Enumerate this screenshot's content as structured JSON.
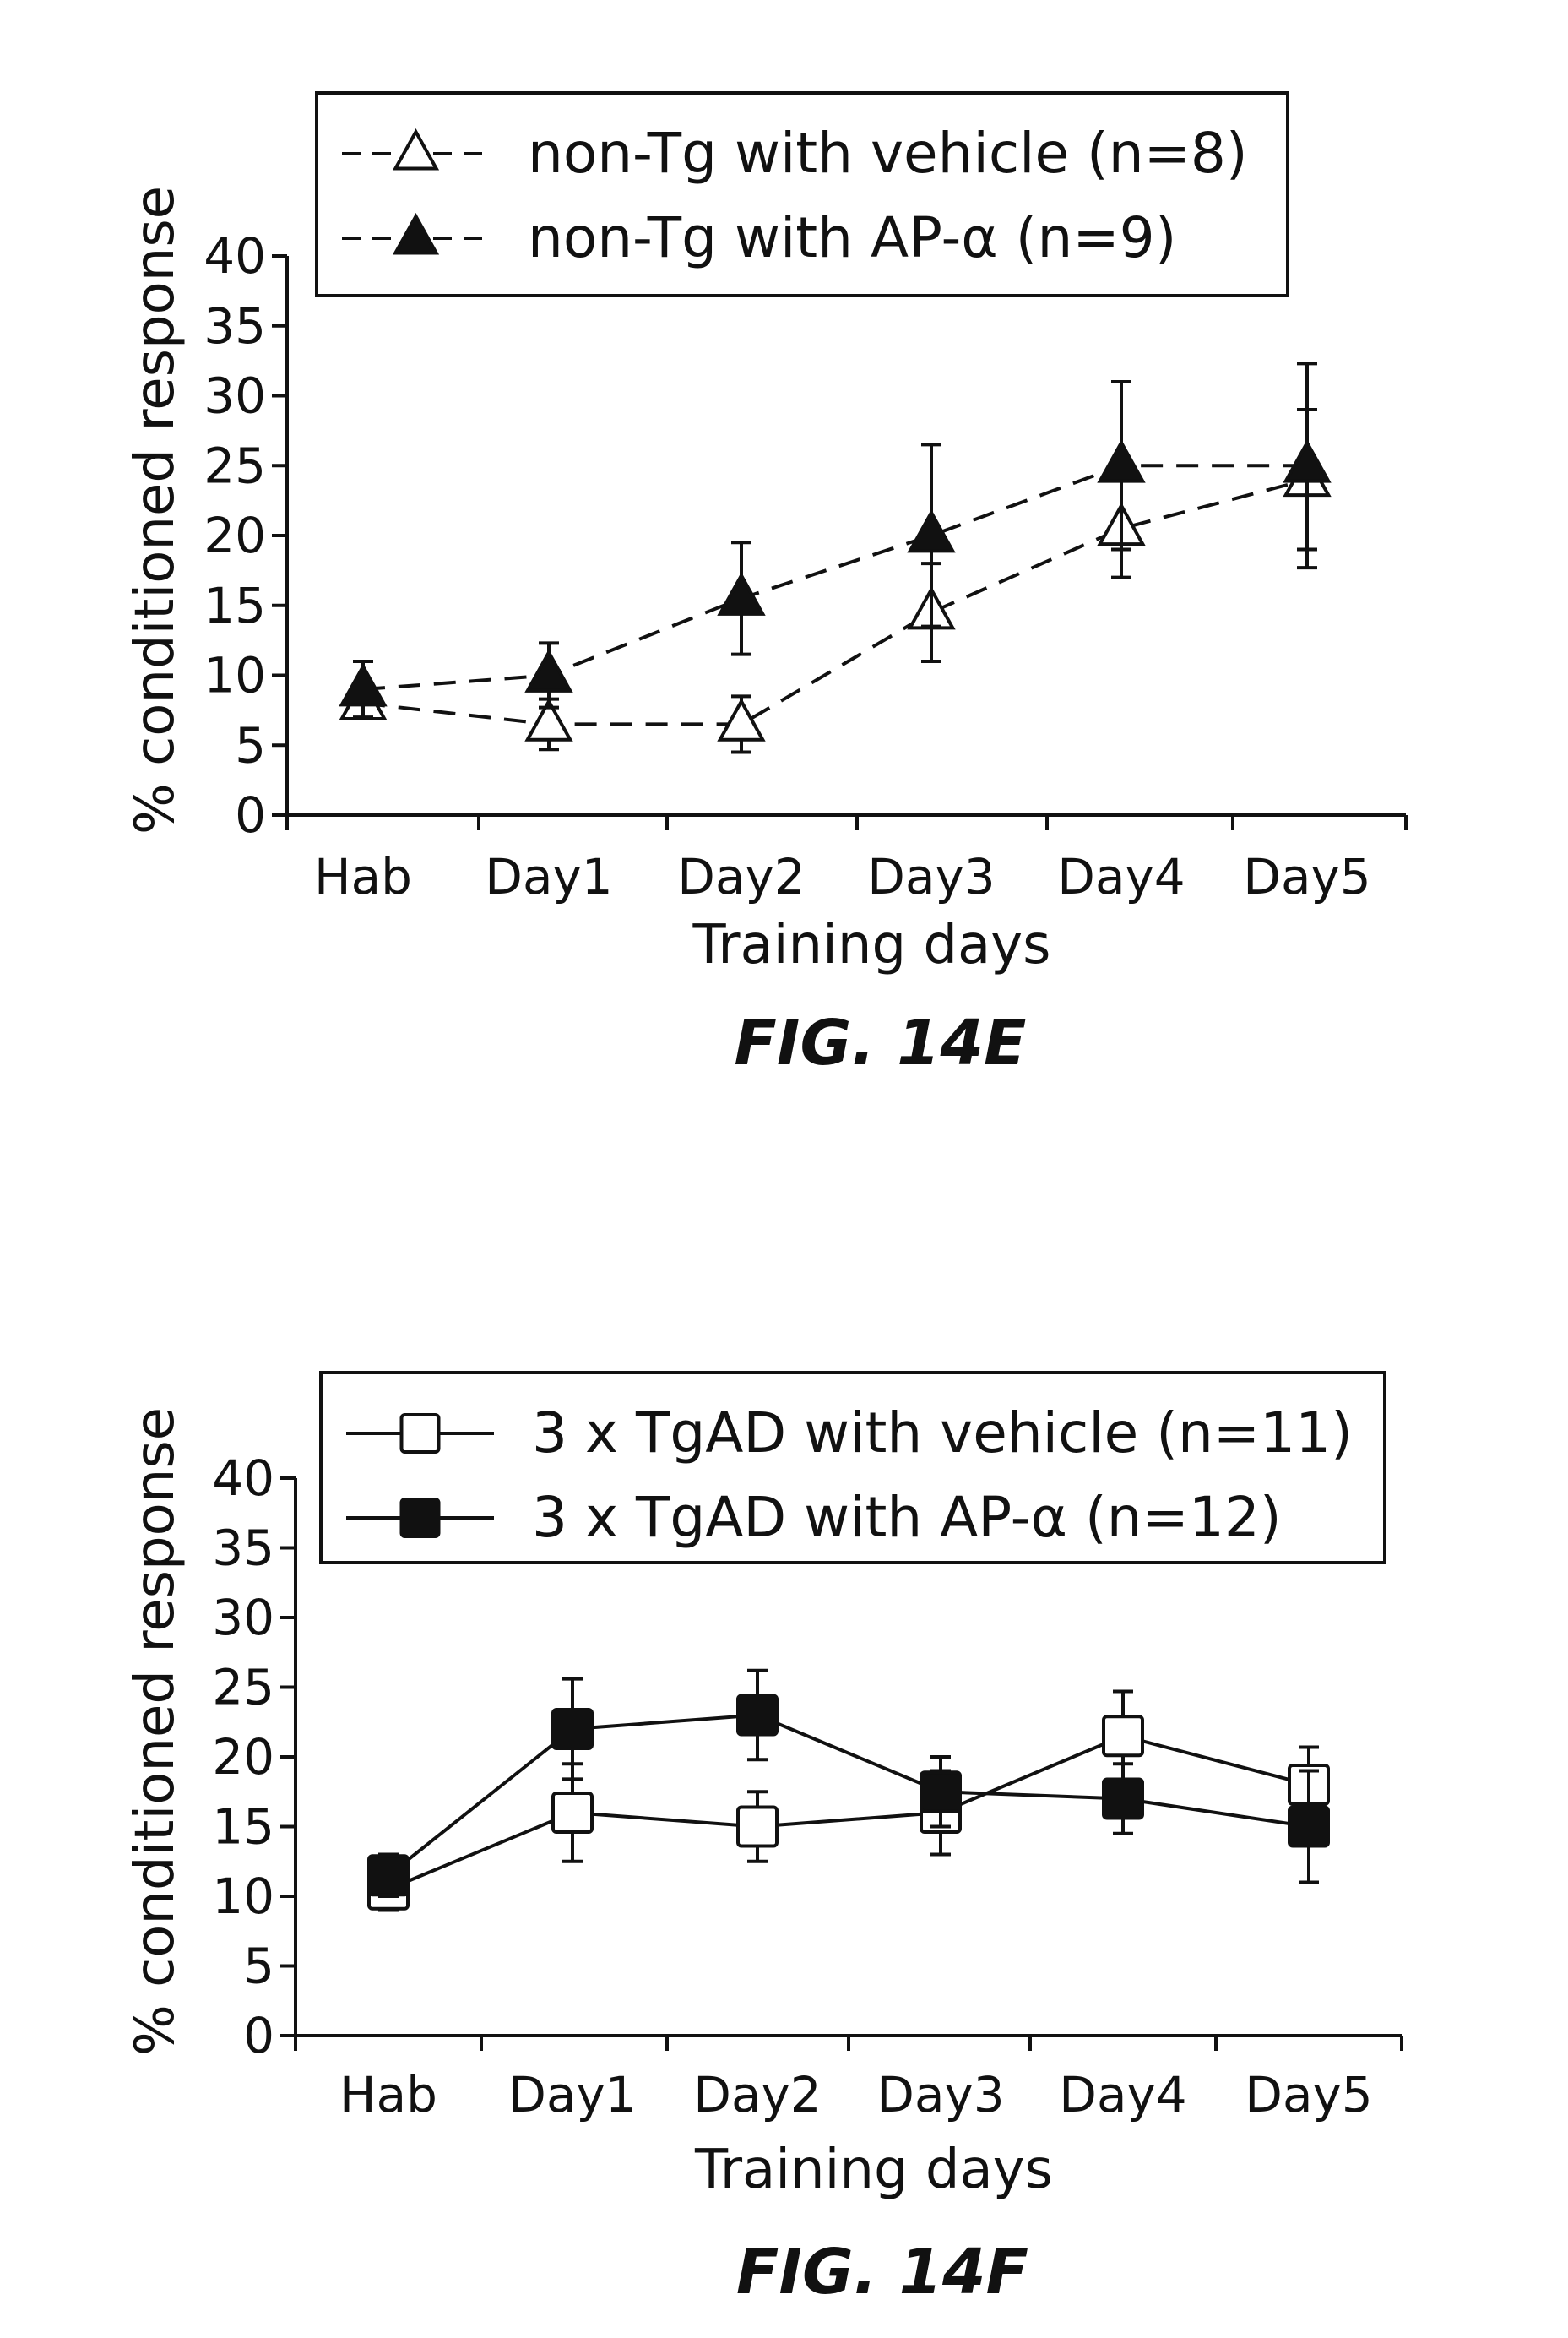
{
  "chart_data": [
    {
      "type": "line",
      "figure_label": "FIG. 14E",
      "xlabel": "Training days",
      "ylabel": "% conditioned response",
      "ylim": [
        0,
        40
      ],
      "yticks": [
        0,
        5,
        10,
        15,
        20,
        25,
        30,
        35,
        40
      ],
      "categories": [
        "Hab",
        "Day1",
        "Day2",
        "Day3",
        "Day4",
        "Day5"
      ],
      "legend_position": "top",
      "series": [
        {
          "name": "non-Tg with vehicle (n=8)",
          "legend_label": "non-Tg with vehicle",
          "legend_n": "(n=8)",
          "marker": "triangle-open",
          "line": "dashed",
          "values": [
            8,
            6.5,
            6.5,
            14.5,
            20.5,
            24
          ],
          "errors": [
            1,
            1.8,
            2,
            3.5,
            3.5,
            5
          ]
        },
        {
          "name": "non-Tg with AP-α (n=9)",
          "legend_label": "non-Tg with AP-α",
          "legend_n": "(n=9)",
          "marker": "triangle-filled",
          "line": "dashed",
          "values": [
            9,
            10,
            15.5,
            20,
            25,
            25
          ],
          "errors": [
            2,
            2.3,
            4,
            6.5,
            6,
            7.3
          ]
        }
      ]
    },
    {
      "type": "line",
      "figure_label": "FIG. 14F",
      "xlabel": "Training days",
      "ylabel": "% conditioned response",
      "ylim": [
        0,
        40
      ],
      "yticks": [
        0,
        5,
        10,
        15,
        20,
        25,
        30,
        35,
        40
      ],
      "categories": [
        "Hab",
        "Day1",
        "Day2",
        "Day3",
        "Day4",
        "Day5"
      ],
      "legend_position": "top",
      "series": [
        {
          "name": "3 x TgAD with vehicle (n=11)",
          "legend_label": "3 x TgAD with vehicle",
          "legend_n": "(n=11)",
          "marker": "square-open",
          "line": "solid",
          "values": [
            10.5,
            16,
            15,
            16,
            21.5,
            18
          ],
          "errors": [
            1.5,
            3.5,
            2.5,
            3,
            3.2,
            2.7
          ]
        },
        {
          "name": "3 x TgAD with AP-α (n=12)",
          "legend_label": "3 x TgAD with AP-α",
          "legend_n": "(n=12)",
          "marker": "square-filled",
          "line": "solid",
          "values": [
            11.5,
            22,
            23,
            17.5,
            17,
            15
          ],
          "errors": [
            1.5,
            3.6,
            3.2,
            2.5,
            2.5,
            4
          ]
        }
      ]
    }
  ]
}
